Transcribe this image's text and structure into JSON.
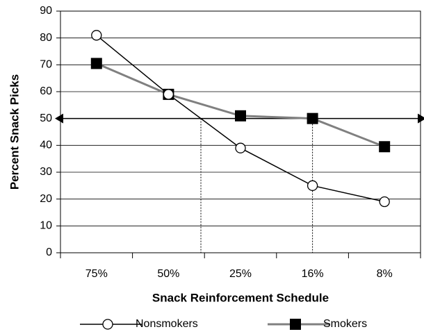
{
  "chart_data": {
    "type": "line",
    "x_label": "Snack Reinforcement Schedule",
    "y_label": "Percent Snack Picks",
    "categories": [
      "75%",
      "50%",
      "25%",
      "16%",
      "8%"
    ],
    "series": [
      {
        "name": "Nonsmokers",
        "color": "#000000",
        "marker": "circle",
        "values": [
          81,
          59,
          39,
          25,
          19
        ]
      },
      {
        "name": "Smokers",
        "color": "#808080",
        "marker": "square",
        "values": [
          70.5,
          59,
          51,
          50,
          39.5
        ]
      }
    ],
    "ylim": [
      0,
      90
    ],
    "yticks": [
      0,
      10,
      20,
      30,
      40,
      50,
      60,
      70,
      80,
      90
    ],
    "grid": true,
    "reference_line": 50,
    "legend": "bottom"
  }
}
